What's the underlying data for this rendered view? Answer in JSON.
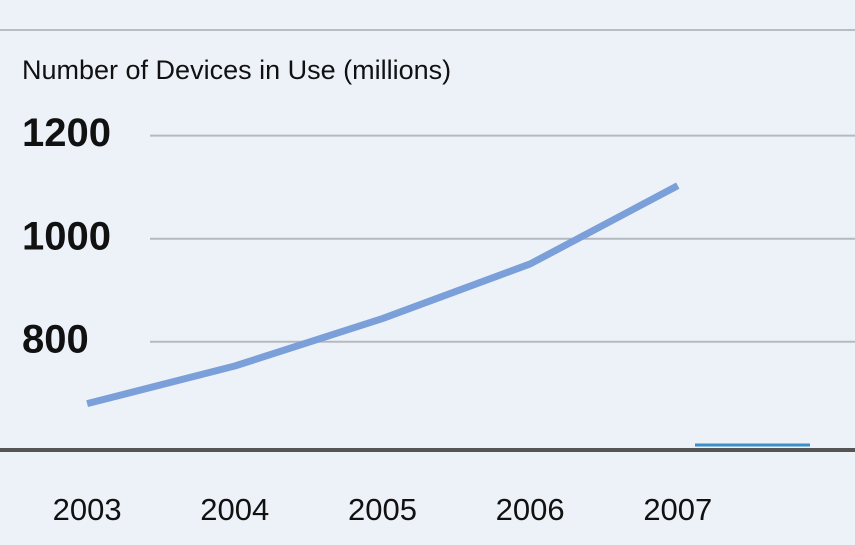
{
  "chart_data": {
    "type": "line",
    "title": "Number of Devices in Use (millions)",
    "x": [
      2003,
      2004,
      2005,
      2006,
      2007
    ],
    "series": [
      {
        "color": "#7b9fd8",
        "values": [
          680,
          753,
          845,
          951,
          1103
        ]
      }
    ],
    "xlim": [
      2002.41,
      2008.2
    ],
    "xticks": [
      2003,
      2004,
      2005,
      2006,
      2007
    ],
    "ylim": [
      590,
      1405
    ],
    "yticks": [
      800,
      1000,
      1200
    ],
    "grid": true
  }
}
